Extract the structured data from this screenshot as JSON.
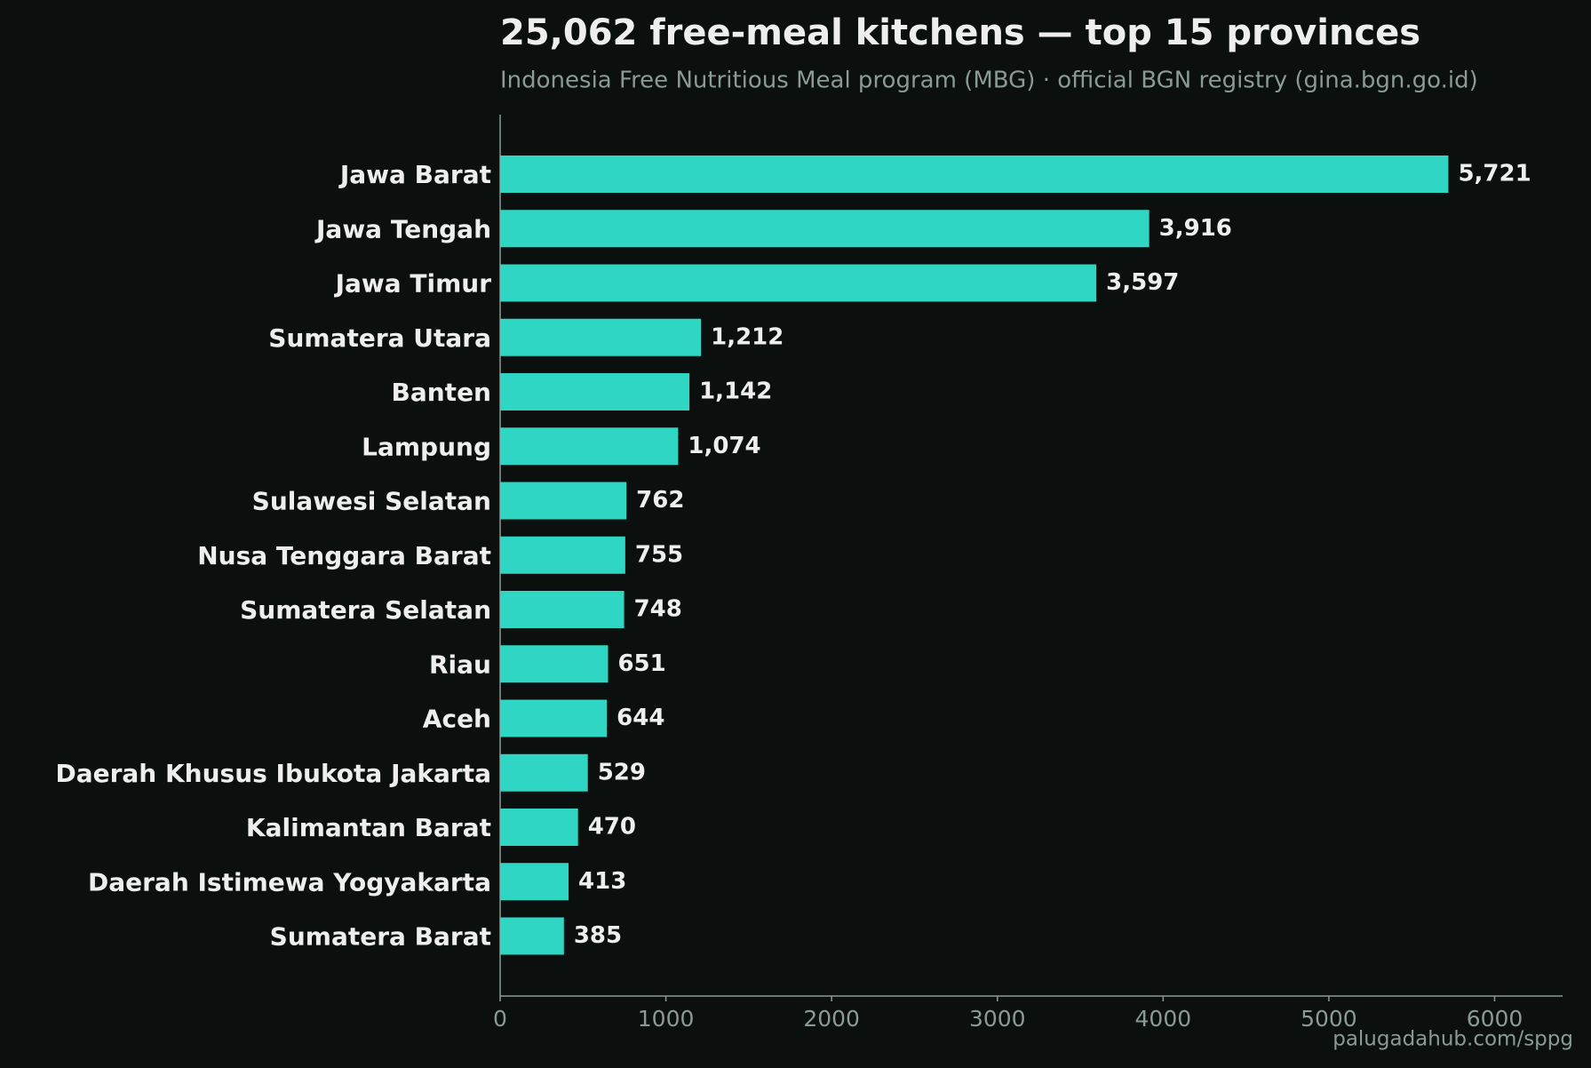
{
  "chart_data": {
    "type": "barh",
    "title": "25,062 free-meal kitchens — top 15 provinces",
    "subtitle": "Indonesia Free Nutritious Meal program (MBG) · official BGN registry (gina.bgn.go.id)",
    "source": "palugadahub.com/sppg",
    "categories": [
      "Jawa Barat",
      "Jawa Tengah",
      "Jawa Timur",
      "Sumatera Utara",
      "Banten",
      "Lampung",
      "Sulawesi Selatan",
      "Nusa Tenggara Barat",
      "Sumatera Selatan",
      "Riau",
      "Aceh",
      "Daerah Khusus Ibukota Jakarta",
      "Kalimantan Barat",
      "Daerah Istimewa Yogyakarta",
      "Sumatera Barat"
    ],
    "values": [
      5721,
      3916,
      3597,
      1212,
      1142,
      1074,
      762,
      755,
      748,
      651,
      644,
      529,
      470,
      413,
      385
    ],
    "value_labels": [
      "5,721",
      "3,916",
      "3,597",
      "1,212",
      "1,142",
      "1,074",
      "762",
      "755",
      "748",
      "651",
      "644",
      "529",
      "470",
      "413",
      "385"
    ],
    "color": "#2fd6c3",
    "xlim": [
      0,
      6410
    ],
    "xticks": [
      0,
      1000,
      2000,
      3000,
      4000,
      5000,
      6000
    ]
  }
}
